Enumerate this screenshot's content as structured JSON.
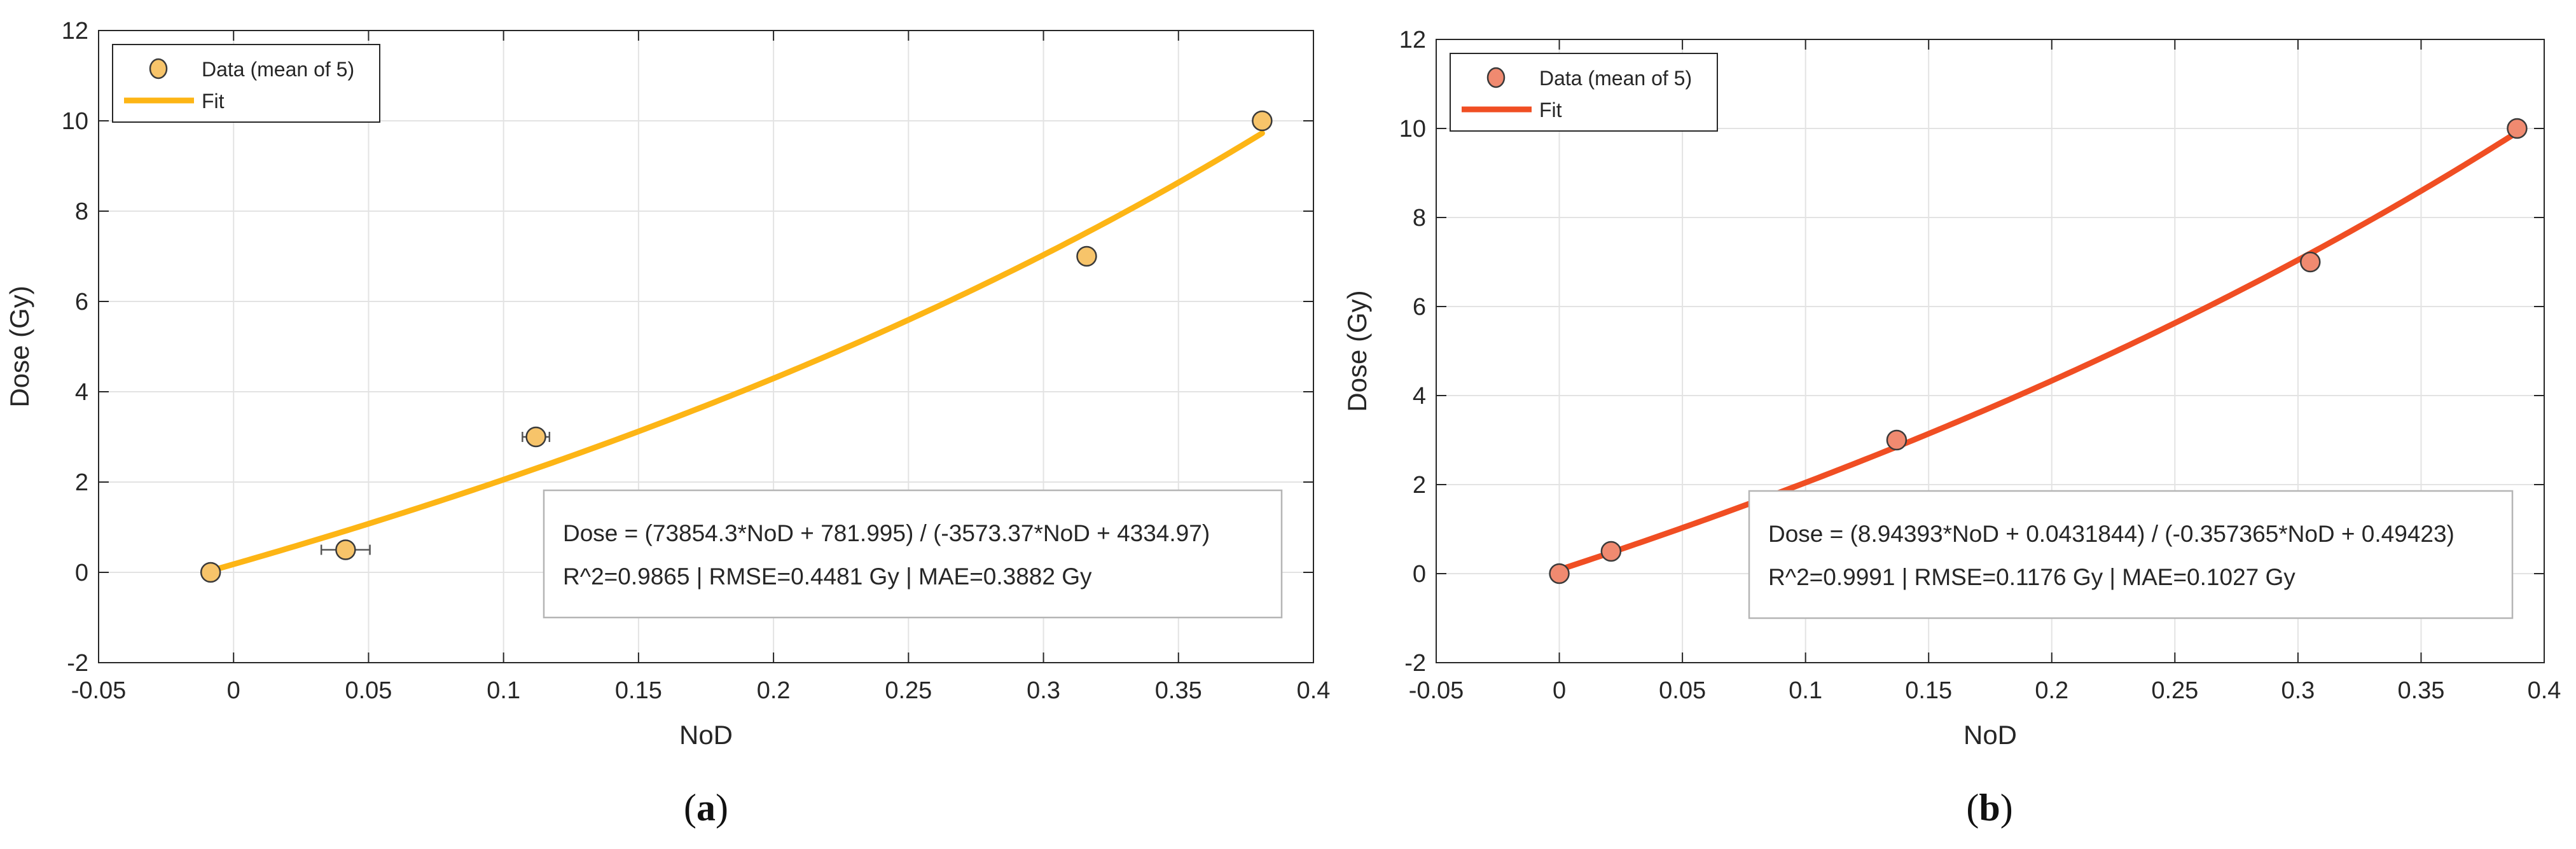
{
  "chart_data": [
    {
      "id": "a",
      "type": "scatter",
      "caption": {
        "open": "(",
        "letter": "a",
        "close": ")"
      },
      "xlabel": "NoD",
      "ylabel": "Dose (Gy)",
      "xlim": [
        -0.05,
        0.4
      ],
      "ylim": [
        -2,
        12
      ],
      "xticks": [
        "-0.05",
        "0",
        "0.05",
        "0.1",
        "0.15",
        "0.2",
        "0.25",
        "0.3",
        "0.35",
        "0.4"
      ],
      "yticks": [
        "-2",
        "0",
        "2",
        "4",
        "6",
        "8",
        "10",
        "12"
      ],
      "grid": true,
      "legend_position": "top-left",
      "legend": [
        "Data (mean of 5)",
        "Fit"
      ],
      "colors": {
        "fit": "#FDB515",
        "marker": "#F7C46A",
        "marker_edge": "#3a3a3a",
        "errorbar": "#555555"
      },
      "series": [
        {
          "name": "Data (mean of 5)",
          "kind": "points",
          "x": [
            -0.0085,
            0.0415,
            0.112,
            0.316,
            0.381
          ],
          "y": [
            0.0,
            0.5,
            3.0,
            7.0,
            10.0
          ],
          "xerr": [
            0.003,
            0.009,
            0.005,
            0.003,
            0.003
          ]
        },
        {
          "name": "Fit",
          "kind": "rational",
          "p1": 73854.3,
          "p2": 781.995,
          "q1": -3573.37,
          "q2": 4334.97,
          "x_range": [
            -0.0085,
            0.381
          ]
        }
      ],
      "annotation": {
        "line1": "Dose = (73854.3*NoD + 781.995) / (-3573.37*NoD + 4334.97)",
        "line2": "R^2=0.9865 | RMSE=0.4481 Gy | MAE=0.3882 Gy"
      }
    },
    {
      "id": "b",
      "type": "scatter",
      "caption": {
        "open": "(",
        "letter": "b",
        "close": ")"
      },
      "xlabel": "NoD",
      "ylabel": "Dose (Gy)",
      "xlim": [
        -0.05,
        0.4
      ],
      "ylim": [
        -2,
        12
      ],
      "xticks": [
        "-0.05",
        "0",
        "0.05",
        "0.1",
        "0.15",
        "0.2",
        "0.25",
        "0.3",
        "0.35",
        "0.4"
      ],
      "yticks": [
        "-2",
        "0",
        "2",
        "4",
        "6",
        "8",
        "10",
        "12"
      ],
      "grid": true,
      "legend_position": "top-left",
      "legend": [
        "Data (mean of 5)",
        "Fit"
      ],
      "colors": {
        "fit": "#F04E23",
        "marker": "#F08A70",
        "marker_edge": "#3a3a3a",
        "errorbar": "#555555"
      },
      "series": [
        {
          "name": "Data (mean of 5)",
          "kind": "points",
          "x": [
            0.0,
            0.021,
            0.137,
            0.305,
            0.389
          ],
          "y": [
            0.0,
            0.5,
            3.0,
            7.0,
            10.0
          ],
          "xerr": [
            0.002,
            0.002,
            0.002,
            0.002,
            0.002
          ]
        },
        {
          "name": "Fit",
          "kind": "rational",
          "p1": 8.94393,
          "p2": 0.0431844,
          "q1": -0.357365,
          "q2": 0.49423,
          "x_range": [
            0.0,
            0.389
          ]
        }
      ],
      "annotation": {
        "line1": "Dose = (8.94393*NoD + 0.0431844) / (-0.357365*NoD + 0.49423)",
        "line2": "R^2=0.9991 | RMSE=0.1176 Gy | MAE=0.1027 Gy"
      }
    }
  ]
}
